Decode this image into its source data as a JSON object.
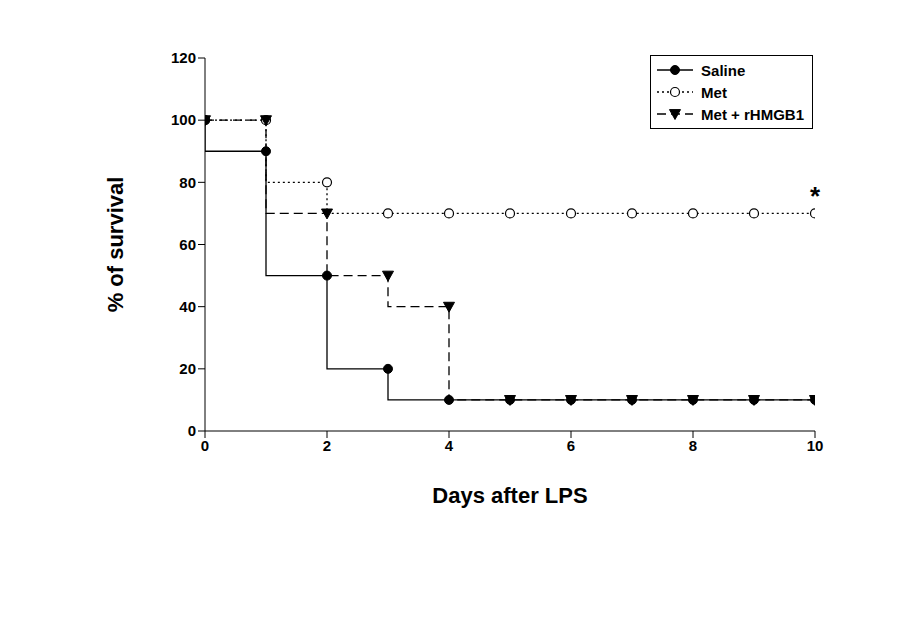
{
  "chart_data": {
    "type": "line",
    "x_label": "Days after LPS",
    "y_label": "% of survival",
    "x": [
      0,
      1,
      2,
      3,
      4,
      5,
      6,
      7,
      8,
      9,
      10
    ],
    "xlim": [
      0,
      10
    ],
    "xticks": [
      0,
      2,
      4,
      6,
      8,
      10
    ],
    "ylim": [
      0,
      120
    ],
    "yticks": [
      0,
      20,
      40,
      60,
      80,
      100,
      120
    ],
    "grid": false,
    "legend": "upper right",
    "series": [
      {
        "name": "Saline",
        "color": "#000000",
        "marker": "circle",
        "line_style": "solid",
        "values": [
          100,
          90,
          50,
          20,
          10,
          10,
          10,
          10,
          10,
          10,
          10
        ]
      },
      {
        "name": "Met",
        "color": "#000000",
        "marker": "open_circle",
        "line_style": "dotted",
        "values": [
          100,
          100,
          80,
          70,
          70,
          70,
          70,
          70,
          70,
          70,
          70
        ]
      },
      {
        "name": "Met + rHMGB1",
        "color": "#000000",
        "marker": "triangle",
        "line_style": "dashed",
        "values": [
          100,
          100,
          70,
          50,
          40,
          10,
          10,
          10,
          10,
          10,
          10
        ]
      }
    ],
    "annotations": [
      {
        "text": "*",
        "x": 10,
        "y": 70
      }
    ]
  }
}
